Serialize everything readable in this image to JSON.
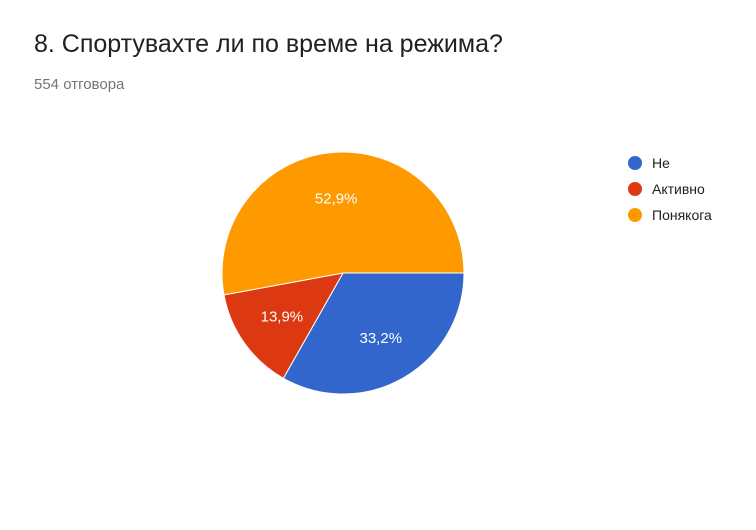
{
  "header": {
    "title": "8. Спортувахте ли по време на режима?",
    "responses": "554 отговора"
  },
  "chart_data": {
    "type": "pie",
    "categories": [
      "Не",
      "Активно",
      "Понякога"
    ],
    "values": [
      33.2,
      13.9,
      52.9
    ],
    "labels": [
      "33,2%",
      "13,9%",
      "52,9%"
    ],
    "colors": [
      "#3366cc",
      "#dc3912",
      "#ff9900"
    ],
    "start_angle_deg": 0,
    "direction": "clockwise",
    "legend_position": "right"
  }
}
